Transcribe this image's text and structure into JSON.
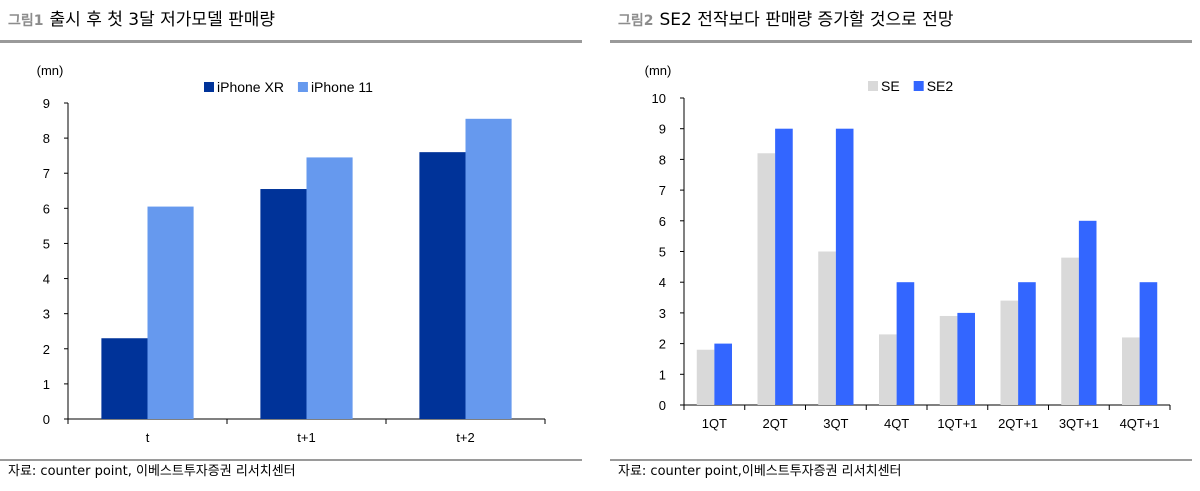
{
  "figures": [
    {
      "number": "그림1",
      "title": "출시 후 첫 3달 저가모델 판매량",
      "source": "자료: counter point,  이베스트투자증권 리서치센터",
      "chart_data": {
        "type": "bar",
        "unit": "(mn)",
        "categories": [
          "t",
          "t+1",
          "t+2"
        ],
        "series": [
          {
            "name": "iPhone XR",
            "color": "#003399",
            "values": [
              2.3,
              6.55,
              7.6
            ]
          },
          {
            "name": "iPhone 11",
            "color": "#6699ee",
            "values": [
              6.05,
              7.45,
              8.55
            ]
          }
        ],
        "ylim": [
          0,
          9
        ],
        "yticks": [
          0,
          1,
          2,
          3,
          4,
          5,
          6,
          7,
          8,
          9
        ],
        "legend": "top-center",
        "grid": false
      }
    },
    {
      "number": "그림2",
      "title": "SE2 전작보다 판매량 증가할 것으로 전망",
      "source": "자료: counter point,이베스트투자증권 리서치센터",
      "chart_data": {
        "type": "bar",
        "unit": "(mn)",
        "categories": [
          "1QT",
          "2QT",
          "3QT",
          "4QT",
          "1QT+1",
          "2QT+1",
          "3QT+1",
          "4QT+1"
        ],
        "series": [
          {
            "name": "SE",
            "color": "#d9d9d9",
            "values": [
              1.8,
              8.2,
              5.0,
              2.3,
              2.9,
              3.4,
              4.8,
              2.2
            ]
          },
          {
            "name": "SE2",
            "color": "#3366ff",
            "values": [
              2.0,
              9.0,
              9.0,
              4.0,
              3.0,
              4.0,
              6.0,
              4.0
            ]
          }
        ],
        "ylim": [
          0,
          10
        ],
        "yticks": [
          0,
          1,
          2,
          3,
          4,
          5,
          6,
          7,
          8,
          9,
          10
        ],
        "legend": "top-center",
        "grid": false
      }
    }
  ]
}
